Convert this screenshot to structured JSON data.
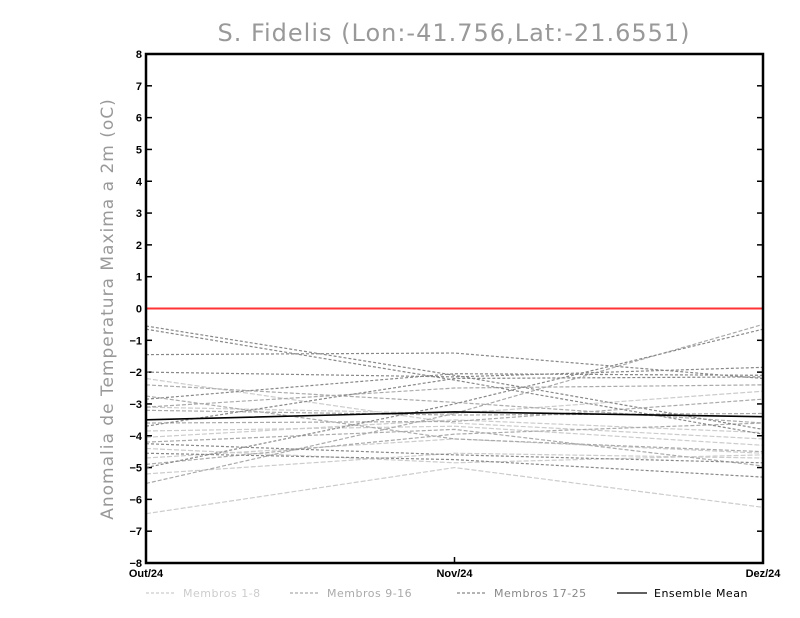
{
  "chart_data": {
    "type": "line",
    "title": "S. Fidelis (Lon:-41.756,Lat:-21.6551)",
    "ylabel": "Anomalia de Temperatura Maxima a 2m (oC)",
    "xlabel": "",
    "categories": [
      "Out/24",
      "Nov/24",
      "Dez/24"
    ],
    "ylim": [
      -8,
      8
    ],
    "yticks": [
      "8",
      "7",
      "6",
      "5",
      "4",
      "3",
      "2",
      "1",
      "0",
      "−1",
      "−2",
      "−3",
      "−4",
      "−5",
      "−6",
      "−7",
      "−8"
    ],
    "yticks_values": [
      8,
      7,
      6,
      5,
      4,
      3,
      2,
      1,
      0,
      -1,
      -2,
      -3,
      -4,
      -5,
      -6,
      -7,
      -8
    ],
    "reference_line": {
      "value": 0,
      "color": "#ff3333"
    },
    "grid": false,
    "legend_position": "bottom",
    "series": [
      {
        "group": 0,
        "values": [
          -6.45,
          -5.0,
          -6.25
        ]
      },
      {
        "group": 0,
        "values": [
          -5.2,
          -4.55,
          -4.7
        ]
      },
      {
        "group": 0,
        "values": [
          -4.7,
          -4.1,
          -4.55
        ]
      },
      {
        "group": 0,
        "values": [
          -4.05,
          -3.5,
          -3.9
        ]
      },
      {
        "group": 0,
        "values": [
          -3.85,
          -3.7,
          -4.3
        ]
      },
      {
        "group": 0,
        "values": [
          -2.2,
          -3.6,
          -4.1
        ]
      },
      {
        "group": 0,
        "values": [
          -3.1,
          -3.3,
          -2.6
        ]
      },
      {
        "group": 0,
        "values": [
          -4.4,
          -4.85,
          -4.6
        ]
      },
      {
        "group": 1,
        "values": [
          -5.5,
          -3.3,
          -0.5
        ]
      },
      {
        "group": 1,
        "values": [
          -3.1,
          -2.5,
          -2.4
        ]
      },
      {
        "group": 1,
        "values": [
          -2.4,
          -2.95,
          -3.6
        ]
      },
      {
        "group": 1,
        "values": [
          -3.6,
          -3.55,
          -2.85
        ]
      },
      {
        "group": 1,
        "values": [
          -4.2,
          -3.8,
          -4.95
        ]
      },
      {
        "group": 1,
        "values": [
          -3.2,
          -3.35,
          -3.3
        ]
      },
      {
        "group": 1,
        "values": [
          -4.9,
          -3.95,
          -3.6
        ]
      },
      {
        "group": 1,
        "values": [
          -2.75,
          -4.1,
          -4.5
        ]
      },
      {
        "group": 2,
        "values": [
          -0.55,
          -2.1,
          -3.8
        ]
      },
      {
        "group": 2,
        "values": [
          -0.65,
          -2.25,
          -3.95
        ]
      },
      {
        "group": 2,
        "values": [
          -1.45,
          -1.4,
          -2.2
        ]
      },
      {
        "group": 2,
        "values": [
          -2.0,
          -2.15,
          -1.85
        ]
      },
      {
        "group": 2,
        "values": [
          -2.85,
          -2.05,
          -2.1
        ]
      },
      {
        "group": 2,
        "values": [
          -3.7,
          -2.2,
          -2.15
        ]
      },
      {
        "group": 2,
        "values": [
          -4.55,
          -4.75,
          -5.3
        ]
      },
      {
        "group": 2,
        "values": [
          -4.25,
          -4.6,
          -4.85
        ]
      },
      {
        "group": 2,
        "values": [
          -5.0,
          -3.0,
          -0.65
        ]
      }
    ],
    "ensemble_mean": {
      "name": "Ensemble Mean",
      "values": [
        -3.5,
        -3.25,
        -3.4
      ]
    },
    "legend": [
      {
        "label": "Membros 1-8",
        "style": "dashed",
        "color": "#cccccc"
      },
      {
        "label": "Membros 9-16",
        "style": "dashed",
        "color": "#aaaaaa"
      },
      {
        "label": "Membros 17-25",
        "style": "dashed",
        "color": "#888888"
      },
      {
        "label": "Ensemble Mean",
        "style": "solid",
        "color": "#000000"
      }
    ]
  }
}
